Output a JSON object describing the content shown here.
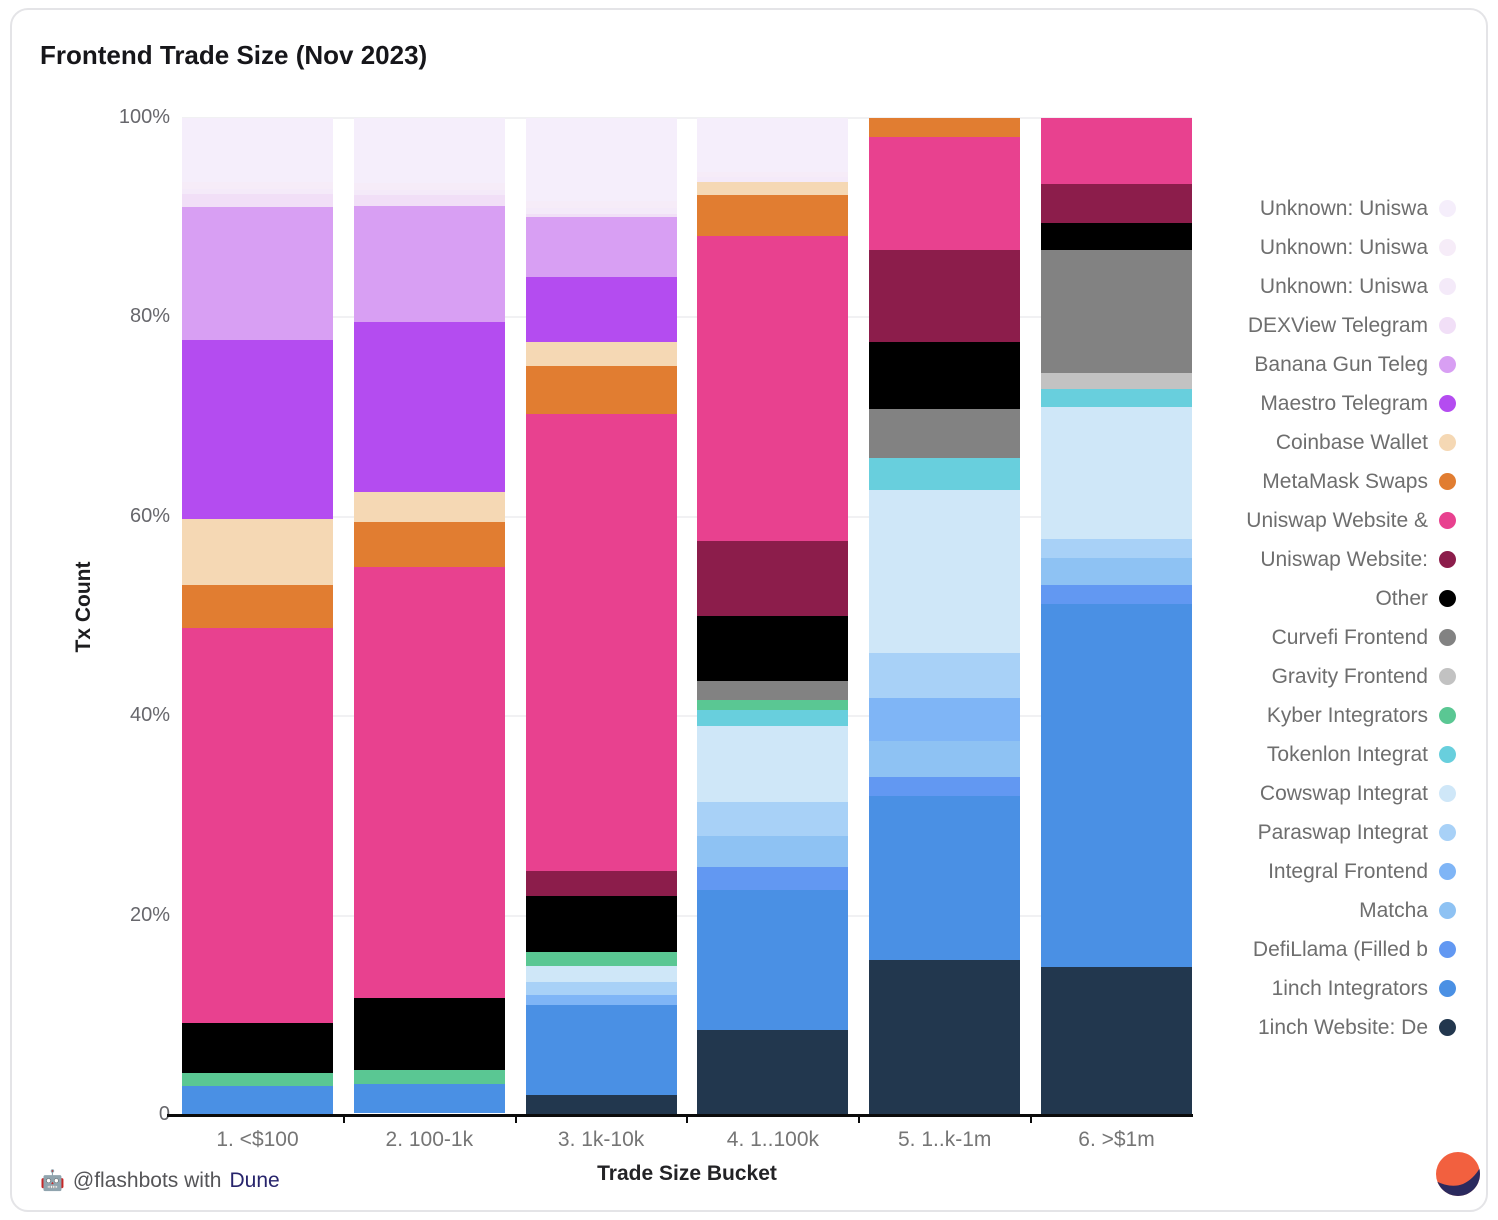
{
  "card": {
    "title": "Frontend Trade Size (Nov 2023)",
    "footer": {
      "icon": "🤖",
      "text": "@flashbots with",
      "link_text": "Dune"
    },
    "brand_colors": {
      "dune_orange": "#f2603f",
      "dune_navy": "#2b2a5e"
    }
  },
  "chart_data": {
    "type": "bar",
    "variant": "stacked-100-percent",
    "title": "Frontend Trade Size (Nov 2023)",
    "xlabel": "Trade Size Bucket",
    "ylabel": "Tx Count",
    "ylim": [
      0,
      100
    ],
    "y_ticks": [
      "100%",
      "80%",
      "60%",
      "40%",
      "20%",
      "0"
    ],
    "grid": "horizontal",
    "legend_position": "right",
    "categories": [
      "1. <$100",
      "2. 100-1k",
      "3. 1k-10k",
      "4. 1..100k",
      "5. 1..k-1m",
      "6. >$1m"
    ],
    "series": [
      {
        "name": "Unknown: Uniswa",
        "color": "#f5eefb",
        "values": [
          6.4,
          6.5,
          8.3,
          5.4,
          0,
          0
        ]
      },
      {
        "name": "Unknown: Uniswa",
        "color": "#f6ecf8",
        "values": [
          0.7,
          0.7,
          0.7,
          0.5,
          0,
          0
        ]
      },
      {
        "name": "Unknown: Uniswa",
        "color": "#f4eaf9",
        "values": [
          0.5,
          0.5,
          0.6,
          0.5,
          0,
          0
        ]
      },
      {
        "name": "DEXView Telegram",
        "color": "#f1dff7",
        "values": [
          1.3,
          1.1,
          0.3,
          0,
          0,
          0
        ]
      },
      {
        "name": "Banana Gun Teleg",
        "color": "#d89ff3",
        "values": [
          13.4,
          11.7,
          6.1,
          0,
          0,
          0
        ]
      },
      {
        "name": "Maestro Telegram",
        "color": "#b44cf0",
        "values": [
          17.9,
          17.0,
          6.5,
          0,
          0,
          0
        ]
      },
      {
        "name": "Coinbase Wallet",
        "color": "#f5d8b4",
        "values": [
          6.6,
          3.0,
          2.4,
          1.3,
          0,
          0
        ]
      },
      {
        "name": "MetaMask Swaps",
        "color": "#e17d31",
        "values": [
          4.4,
          4.5,
          4.8,
          4.1,
          1.9,
          0
        ]
      },
      {
        "name": "Uniswap Website &",
        "color": "#e8418f",
        "values": [
          39.6,
          43.3,
          45.8,
          30.6,
          11.3,
          6.6
        ]
      },
      {
        "name": "Uniswap Website:",
        "color": "#8c1d4b",
        "values": [
          0,
          0,
          2.5,
          7.6,
          9.3,
          3.9
        ]
      },
      {
        "name": "Other",
        "color": "#000000",
        "values": [
          5.0,
          7.2,
          5.7,
          6.5,
          6.7,
          2.7
        ]
      },
      {
        "name": "Curvefi Frontend",
        "color": "#828282",
        "values": [
          0,
          0,
          0,
          1.9,
          4.9,
          12.4
        ]
      },
      {
        "name": "Gravity Frontend",
        "color": "#c2c2c2",
        "values": [
          0,
          0,
          0,
          0,
          0,
          1.6
        ]
      },
      {
        "name": "Kyber Integrators",
        "color": "#5ac793",
        "values": [
          1.3,
          1.4,
          1.4,
          1.0,
          0,
          0
        ]
      },
      {
        "name": "Tokenlon Integrat",
        "color": "#68cfdd",
        "values": [
          0,
          0,
          0,
          1.6,
          3.2,
          1.8
        ]
      },
      {
        "name": "Cowswap Integrat",
        "color": "#cfe7f8",
        "values": [
          0,
          0,
          1.6,
          7.6,
          16.4,
          13.2
        ]
      },
      {
        "name": "Paraswap Integrat",
        "color": "#a8d1f7",
        "values": [
          0,
          0,
          1.3,
          3.4,
          4.5,
          1.9
        ]
      },
      {
        "name": "Integral Frontend",
        "color": "#7fb5f6",
        "values": [
          0,
          0,
          1.0,
          0,
          4.3,
          0
        ]
      },
      {
        "name": "Matcha",
        "color": "#8ec2f3",
        "values": [
          0,
          0,
          0,
          3.1,
          3.6,
          2.7
        ]
      },
      {
        "name": "DefiLlama (Filled b",
        "color": "#6298f2",
        "values": [
          0,
          0,
          0,
          2.3,
          1.9,
          2.0
        ]
      },
      {
        "name": "1inch Integrators",
        "color": "#4a90e4",
        "values": [
          2.8,
          2.9,
          9.0,
          14.1,
          16.5,
          36.4
        ]
      },
      {
        "name": "1inch Website: De",
        "color": "#22374e",
        "values": [
          0,
          0,
          1.9,
          8.4,
          15.4,
          14.7
        ]
      }
    ]
  }
}
